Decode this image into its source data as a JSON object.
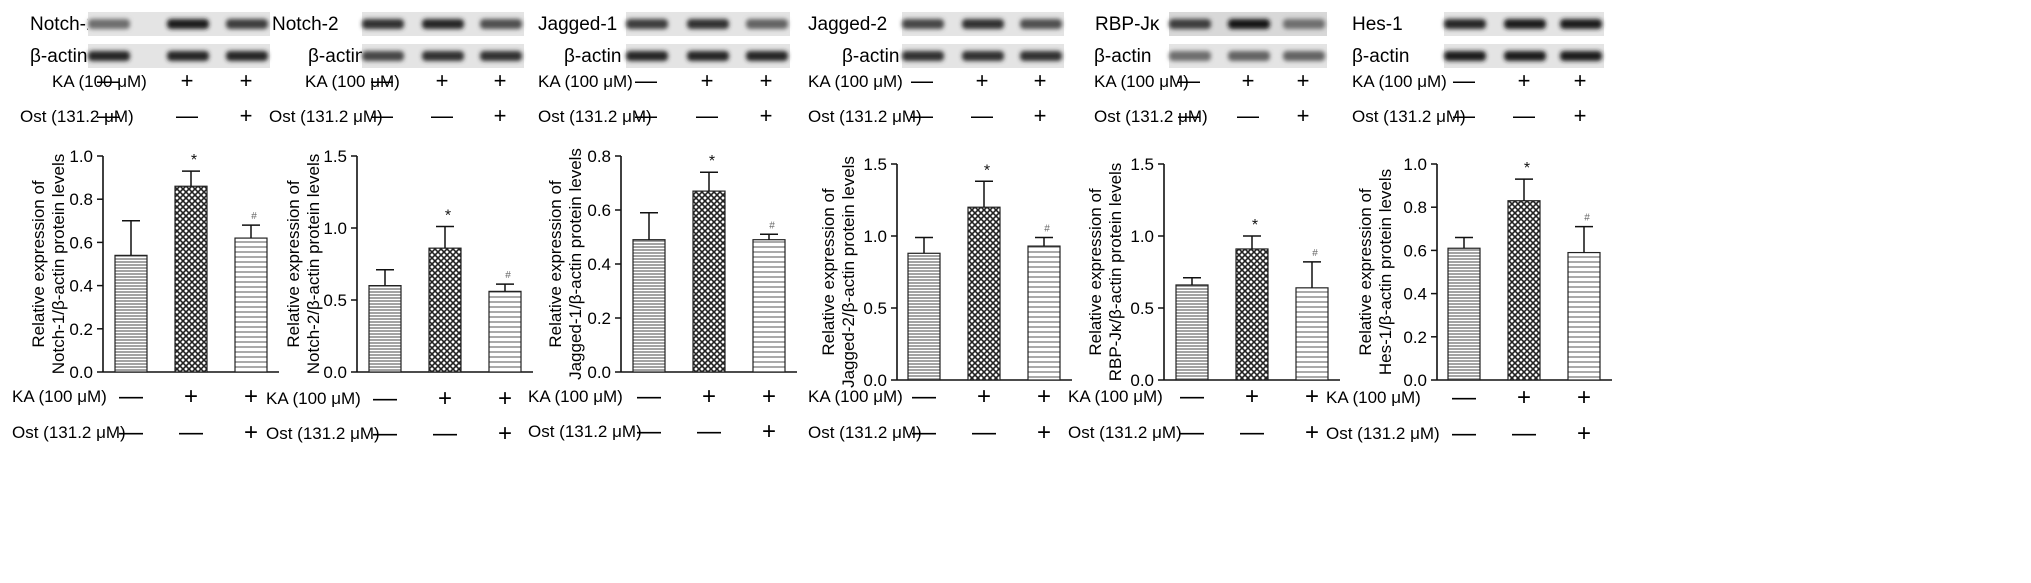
{
  "conditions": {
    "ka_label": "KA (100 μM)",
    "ost_label": "Ost (131.2 μM)",
    "ka_signs": [
      "—",
      "+",
      "+"
    ],
    "ost_signs": [
      "—",
      "—",
      "+"
    ]
  },
  "blots": [
    {
      "protein": "Notch-1",
      "control": "β-actin"
    },
    {
      "protein": "Notch-2",
      "control": "β-actin"
    },
    {
      "protein": "Jagged-1",
      "control": "β-actin"
    },
    {
      "protein": "Jagged-2",
      "control": "β-actin"
    },
    {
      "protein": "RBP-Jκ",
      "control": "β-actin"
    },
    {
      "protein": "Hes-1",
      "control": "β-actin"
    }
  ],
  "chart_data": [
    {
      "type": "bar",
      "ylabel_line1": "Relative expression of",
      "ylabel_line2": "Notch-1/β-actin protein levels",
      "ylim": [
        0,
        1.0
      ],
      "ticks": [
        "0.0",
        "0.2",
        "0.4",
        "0.6",
        "0.8",
        "1.0"
      ],
      "values": [
        0.54,
        0.86,
        0.62
      ],
      "errors": [
        0.16,
        0.07,
        0.06
      ],
      "marks": [
        "",
        "*",
        "#"
      ]
    },
    {
      "type": "bar",
      "ylabel_line1": "Relative expression of",
      "ylabel_line2": "Notch-2/β-actin protein levels",
      "ylim": [
        0,
        1.5
      ],
      "ticks": [
        "0.0",
        "0.5",
        "1.0",
        "1.5"
      ],
      "values": [
        0.6,
        0.86,
        0.56
      ],
      "errors": [
        0.11,
        0.15,
        0.05
      ],
      "marks": [
        "",
        "*",
        "#"
      ]
    },
    {
      "type": "bar",
      "ylabel_line1": "Relative expression of",
      "ylabel_line2": "Jagged-1/β-actin protein levels",
      "ylim": [
        0,
        0.8
      ],
      "ticks": [
        "0.0",
        "0.2",
        "0.4",
        "0.6",
        "0.8"
      ],
      "values": [
        0.49,
        0.67,
        0.49
      ],
      "errors": [
        0.1,
        0.07,
        0.02
      ],
      "marks": [
        "",
        "*",
        "#"
      ]
    },
    {
      "type": "bar",
      "ylabel_line1": "Relative expression of",
      "ylabel_line2": "Jagged-2/β-actin protein levels",
      "ylim": [
        0,
        1.5
      ],
      "ticks": [
        "0.0",
        "0.5",
        "1.0",
        "1.5"
      ],
      "values": [
        0.88,
        1.2,
        0.93
      ],
      "errors": [
        0.11,
        0.18,
        0.06
      ],
      "marks": [
        "",
        "*",
        "#"
      ]
    },
    {
      "type": "bar",
      "ylabel_line1": "Relative expression of",
      "ylabel_line2": "RBP-Jκ/β-actin protein levels",
      "ylim": [
        0,
        1.5
      ],
      "ticks": [
        "0.0",
        "0.5",
        "1.0",
        "1.5"
      ],
      "values": [
        0.66,
        0.91,
        0.64
      ],
      "errors": [
        0.05,
        0.09,
        0.18
      ],
      "marks": [
        "",
        "*",
        "#"
      ]
    },
    {
      "type": "bar",
      "ylabel_line1": "Relative expression of",
      "ylabel_line2": "Hes-1/β-actin protein levels",
      "ylim": [
        0,
        1.0
      ],
      "ticks": [
        "0.0",
        "0.2",
        "0.4",
        "0.6",
        "0.8",
        "1.0"
      ],
      "values": [
        0.61,
        0.83,
        0.59
      ],
      "errors": [
        0.05,
        0.1,
        0.12
      ],
      "marks": [
        "",
        "*",
        "#"
      ]
    }
  ]
}
